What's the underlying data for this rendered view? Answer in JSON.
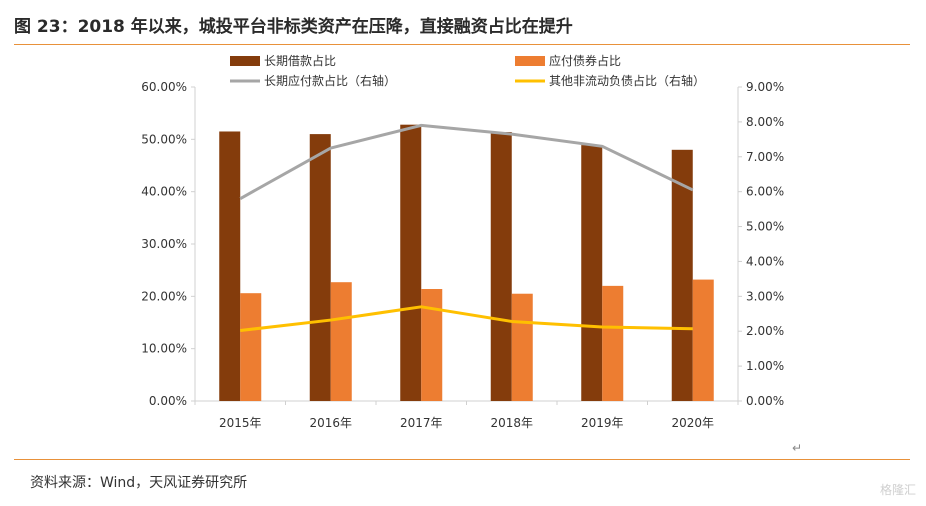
{
  "header": {
    "title": "图 23：2018 年以来，城投平台非标类资产在压降，直接融资占比在提升"
  },
  "footer": {
    "source": "资料来源：Wind，天风证券研究所"
  },
  "watermark": {
    "text": "格隆汇"
  },
  "chart_data": {
    "type": "bar",
    "categories": [
      "2015年",
      "2016年",
      "2017年",
      "2018年",
      "2019年",
      "2020年"
    ],
    "y_left": {
      "range": [
        0,
        60
      ],
      "ticks": [
        "0.00%",
        "10.00%",
        "20.00%",
        "30.00%",
        "40.00%",
        "50.00%",
        "60.00%"
      ]
    },
    "y_right": {
      "range": [
        0,
        9
      ],
      "ticks": [
        "0.00%",
        "1.00%",
        "2.00%",
        "3.00%",
        "4.00%",
        "5.00%",
        "6.00%",
        "7.00%",
        "8.00%",
        "9.00%"
      ]
    },
    "grid": false,
    "legend_position": "top",
    "series": [
      {
        "name": "长期借款占比",
        "type": "bar",
        "axis": "left",
        "color": "#843c0c",
        "values": [
          51.5,
          51.0,
          52.8,
          51.4,
          48.9,
          48.0
        ]
      },
      {
        "name": "应付债券占比",
        "type": "bar",
        "axis": "left",
        "color": "#ed7d31",
        "values": [
          20.6,
          22.7,
          21.4,
          20.5,
          22.0,
          23.2
        ]
      },
      {
        "name": "长期应付款占比（右轴）",
        "type": "line",
        "axis": "right",
        "color": "#a6a6a6",
        "values": [
          5.8,
          7.25,
          7.9,
          7.65,
          7.3,
          6.05
        ]
      },
      {
        "name": "其他非流动负债占比（右轴）",
        "type": "line",
        "axis": "right",
        "color": "#ffc000",
        "values": [
          2.02,
          2.32,
          2.7,
          2.28,
          2.12,
          2.07
        ]
      }
    ]
  }
}
